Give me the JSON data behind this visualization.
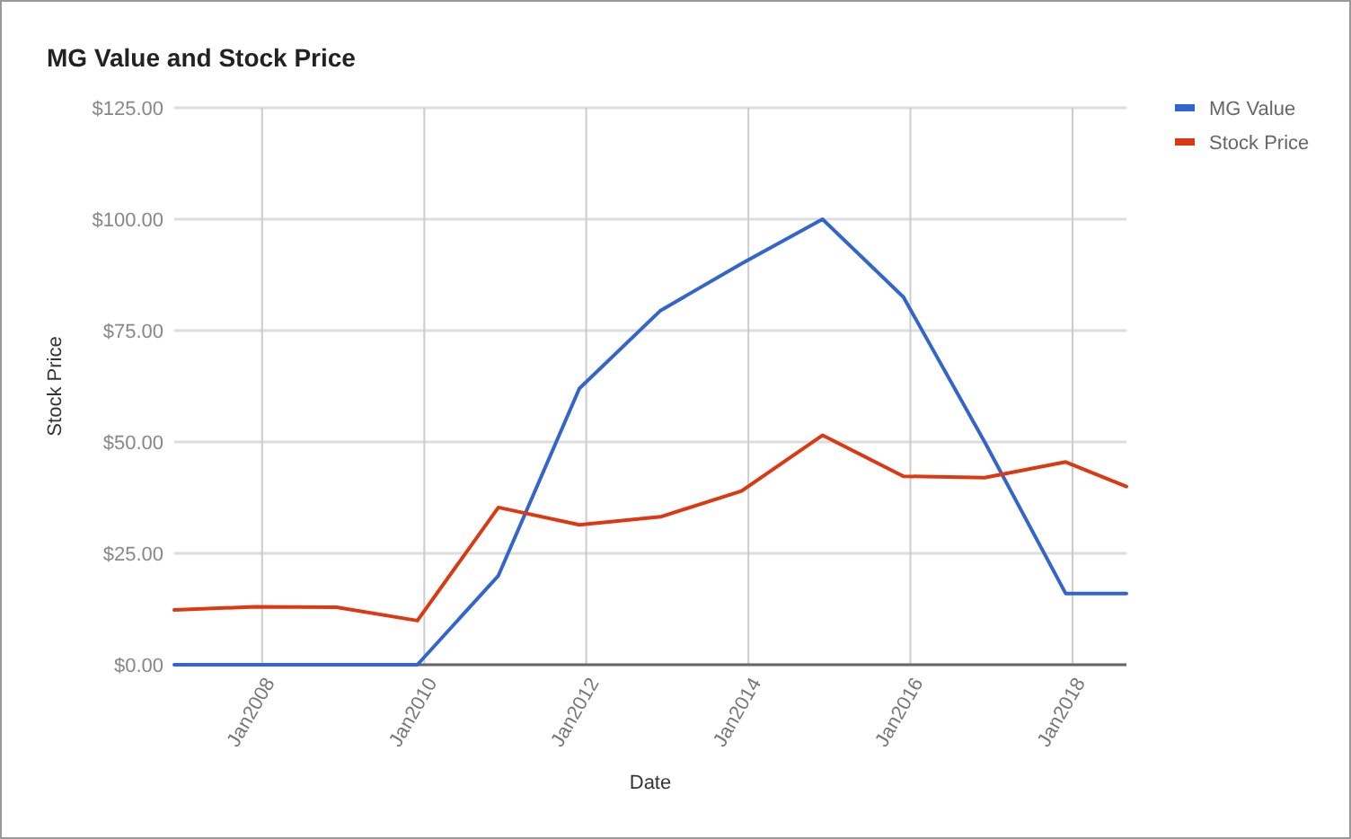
{
  "chart_data": {
    "type": "line",
    "title": "MG Value and Stock Price",
    "xlabel": "Date",
    "ylabel": "Stock Price",
    "x": [
      "2006-12",
      "2007-12",
      "2008-12",
      "2009-12",
      "2010-12",
      "2011-12",
      "2012-12",
      "2013-12",
      "2014-12",
      "2015-12",
      "2016-12",
      "2017-12",
      "2018-09"
    ],
    "series": [
      {
        "name": "MG Value",
        "color": "#3366cc",
        "values": [
          0,
          0,
          0,
          0,
          20,
          62,
          79.5,
          90,
          100,
          82.5,
          50,
          16,
          16
        ]
      },
      {
        "name": "Stock Price",
        "color": "#dc3912",
        "values": [
          12.3,
          13,
          12.9,
          9.9,
          35.3,
          31.4,
          33.2,
          39,
          51.5,
          42.3,
          42,
          45.5,
          40
        ]
      }
    ],
    "xlim": [
      "2006-12",
      "2018-09"
    ],
    "xticks": [
      {
        "value": "2008-01",
        "label": "Jan2008"
      },
      {
        "value": "2010-01",
        "label": "Jan2010"
      },
      {
        "value": "2012-01",
        "label": "Jan2012"
      },
      {
        "value": "2014-01",
        "label": "Jan2014"
      },
      {
        "value": "2016-01",
        "label": "Jan2016"
      },
      {
        "value": "2018-01",
        "label": "Jan2018"
      }
    ],
    "ylim": [
      0,
      125
    ],
    "yticks": [
      {
        "value": 0,
        "label": "$0.00"
      },
      {
        "value": 25,
        "label": "$25.00"
      },
      {
        "value": 50,
        "label": "$50.00"
      },
      {
        "value": 75,
        "label": "$75.00"
      },
      {
        "value": 100,
        "label": "$100.00"
      },
      {
        "value": 125,
        "label": "$125.00"
      }
    ],
    "grid": true,
    "legend": "right",
    "marker": "none",
    "line_style": "solid"
  }
}
